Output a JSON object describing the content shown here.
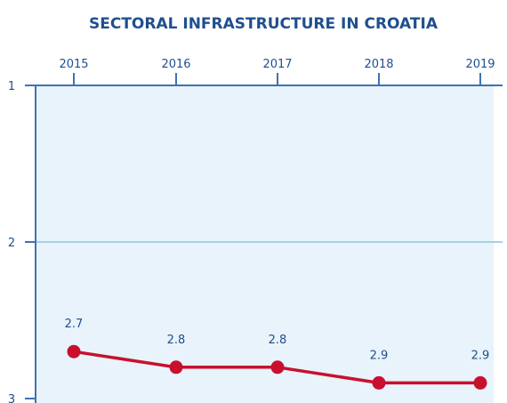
{
  "chart_data": {
    "type": "line",
    "title": "SECTORAL INFRASTRUCTURE IN CROATIA",
    "categories": [
      "2015",
      "2016",
      "2017",
      "2018",
      "2019"
    ],
    "series": [
      {
        "values": [
          2.7,
          2.8,
          2.8,
          2.9,
          2.9
        ]
      }
    ],
    "data_labels": [
      "2.7",
      "2.8",
      "2.8",
      "2.9",
      "2.9"
    ],
    "y_axis": {
      "ticks": [
        "1",
        "2",
        "3"
      ],
      "ylim": [
        1,
        3
      ],
      "inverted": true
    },
    "x_axis_position": "top",
    "grid": true,
    "colors": {
      "title": "#1f4f8f",
      "axis": "#3d73b3",
      "tick_text": "#1f4f8f",
      "plot_fill": "#e8f3fb",
      "gridline": "#8fc1e3",
      "series": "#c8102e",
      "data_label": "#1f4f8f"
    }
  }
}
